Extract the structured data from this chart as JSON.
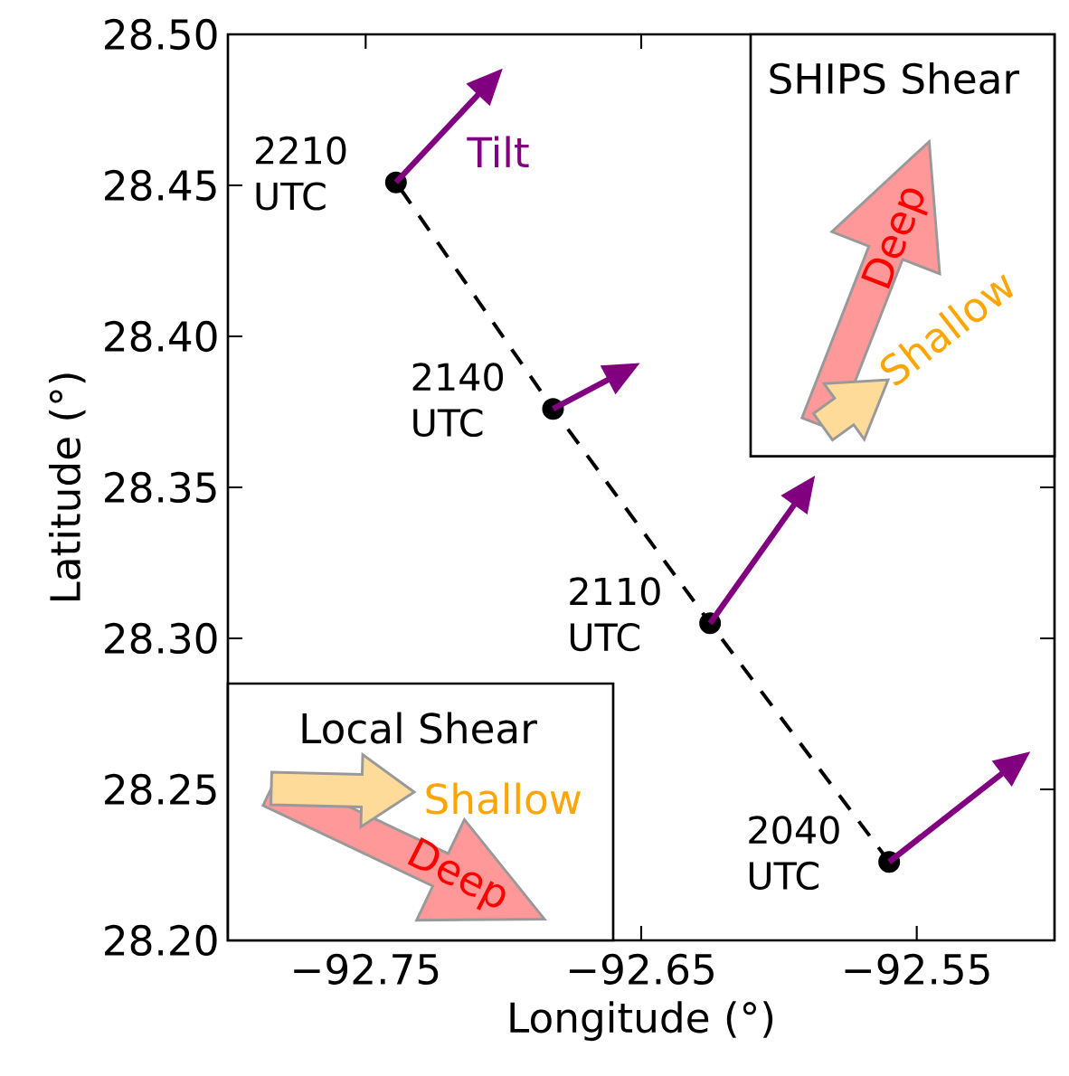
{
  "chart_data": {
    "type": "line",
    "xlabel": "Longitude (°)",
    "ylabel": "Latitude (°)",
    "xlim": [
      -92.8,
      -92.5
    ],
    "ylim": [
      28.2,
      28.5
    ],
    "xticks": [
      {
        "value": -92.75,
        "label": "−92.75"
      },
      {
        "value": -92.65,
        "label": "−92.65"
      },
      {
        "value": -92.55,
        "label": "−92.55"
      }
    ],
    "yticks": [
      {
        "value": 28.2,
        "label": "28.20"
      },
      {
        "value": 28.25,
        "label": "28.25"
      },
      {
        "value": 28.3,
        "label": "28.30"
      },
      {
        "value": 28.35,
        "label": "28.35"
      },
      {
        "value": 28.4,
        "label": "28.40"
      },
      {
        "value": 28.45,
        "label": "28.45"
      },
      {
        "value": 28.5,
        "label": "28.50"
      }
    ],
    "series": [
      {
        "color": "#000000",
        "marker": "circle",
        "line_style": "dashed",
        "x": [
          -92.56,
          -92.625,
          -92.682,
          -92.739
        ],
        "values": [
          28.226,
          28.305,
          28.376,
          28.451
        ]
      }
    ],
    "annotations": [
      {
        "text": "2040 UTC",
        "x": -92.56,
        "y": 28.226
      },
      {
        "text": "2110 UTC",
        "x": -92.625,
        "y": 28.305
      },
      {
        "text": "2140 UTC",
        "x": -92.682,
        "y": 28.376
      },
      {
        "text": "2210 UTC",
        "x": -92.739,
        "y": 28.451
      },
      {
        "text": "Tilt",
        "x": -92.739,
        "y": 28.451
      },
      "Local Shear",
      "Shallow",
      "Deep",
      "SHIPS Shear",
      "Shallow",
      "Deep"
    ]
  }
}
